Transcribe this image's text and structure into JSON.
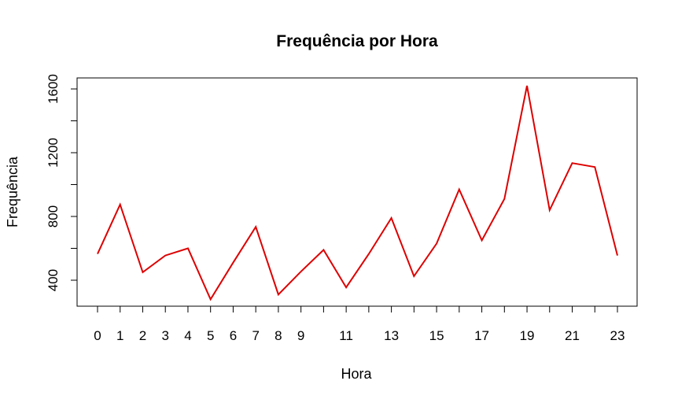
{
  "chart_data": {
    "type": "line",
    "title": "Frequência por Hora",
    "xlabel": "Hora",
    "ylabel": "Frequência",
    "x": [
      0,
      1,
      2,
      3,
      4,
      5,
      6,
      7,
      8,
      9,
      10,
      11,
      12,
      13,
      14,
      15,
      16,
      17,
      18,
      19,
      20,
      21,
      22,
      23
    ],
    "values": [
      565,
      875,
      450,
      555,
      600,
      280,
      510,
      735,
      310,
      455,
      590,
      355,
      565,
      790,
      425,
      630,
      970,
      650,
      910,
      1620,
      840,
      1135,
      1110,
      555
    ],
    "x_tick_labels": [
      "0",
      "1",
      "2",
      "3",
      "4",
      "5",
      "6",
      "7",
      "8",
      "9",
      "11",
      "13",
      "15",
      "17",
      "19",
      "21",
      "23"
    ],
    "y_ticks": [
      "400",
      "800",
      "1200",
      "1600"
    ],
    "ylim": [
      220,
      1710
    ],
    "xlim": [
      -1,
      24
    ],
    "line_color": "#dd0000",
    "grid": false,
    "legend": "none"
  }
}
